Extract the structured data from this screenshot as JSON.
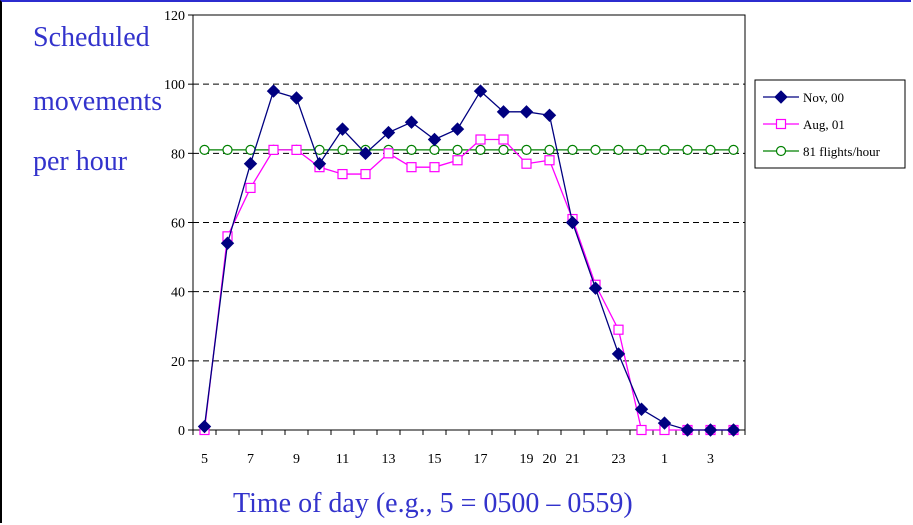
{
  "chart_data": {
    "type": "line",
    "ylabel": [
      "Scheduled",
      "movements",
      "per hour"
    ],
    "xlabel": "Time of day (e.g., 5 = 0500 – 0559)",
    "ylim": [
      0,
      120
    ],
    "yticks": [
      0,
      20,
      40,
      60,
      80,
      100,
      120
    ],
    "x": [
      5,
      6,
      7,
      8,
      9,
      10,
      11,
      12,
      13,
      14,
      15,
      16,
      17,
      18,
      19,
      20,
      21,
      22,
      23,
      24,
      1,
      2,
      3,
      4
    ],
    "xtick_labels": [
      "5",
      "",
      "7",
      "",
      "9",
      "",
      "11",
      "",
      "13",
      "",
      "15",
      "",
      "17",
      "",
      "19",
      "20",
      "21",
      "",
      "23",
      "",
      "1",
      "",
      "3",
      ""
    ],
    "grid": "horizontal dashed",
    "legend_position": "right",
    "series": [
      {
        "name": "Nov, 00",
        "color": "#000080",
        "marker": "diamond",
        "values": [
          1,
          54,
          77,
          98,
          96,
          77,
          87,
          80,
          86,
          89,
          84,
          87,
          98,
          92,
          92,
          91,
          60,
          41,
          22,
          6,
          2,
          0,
          0,
          0
        ]
      },
      {
        "name": "Aug, 01",
        "color": "#ff00ff",
        "marker": "square",
        "values": [
          0,
          56,
          70,
          81,
          81,
          76,
          74,
          74,
          80,
          76,
          76,
          78,
          84,
          84,
          77,
          78,
          61,
          42,
          29,
          0,
          0,
          0,
          0,
          0
        ]
      },
      {
        "name": "81 flights/hour",
        "color": "#008000",
        "marker": "circle",
        "values": [
          81,
          81,
          81,
          81,
          81,
          81,
          81,
          81,
          81,
          81,
          81,
          81,
          81,
          81,
          81,
          81,
          81,
          81,
          81,
          81,
          81,
          81,
          81,
          81
        ]
      }
    ]
  }
}
